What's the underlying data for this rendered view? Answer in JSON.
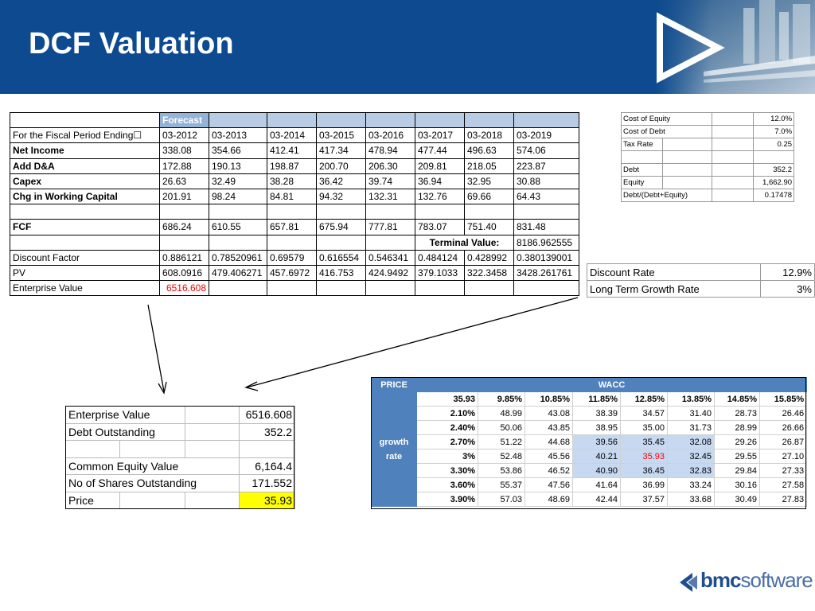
{
  "title": "DCF Valuation",
  "colors": {
    "banner": "#0d4a8f",
    "forecast_header": "#95b3d7",
    "wacc_header": "#4f81bd",
    "highlight": "#c6d9f1",
    "price_cell": "#ffff00",
    "red_text": "#ff0000"
  },
  "main": {
    "forecast_label": "Forecast",
    "rows": [
      {
        "label": "For the Fiscal Period Ending☐",
        "bold": false,
        "values": [
          "03-2012",
          "03-2013",
          "03-2014",
          "03-2015",
          "03-2016",
          "03-2017",
          "03-2018",
          "03-2019"
        ]
      },
      {
        "label": "Net Income",
        "bold": true,
        "values": [
          "338.08",
          "354.66",
          "412.41",
          "417.34",
          "478.94",
          "477.44",
          "496.63",
          "574.06"
        ]
      },
      {
        "label": "Add D&A",
        "bold": true,
        "values": [
          "172.88",
          "190.13",
          "198.87",
          "200.70",
          "206.30",
          "209.81",
          "218.05",
          "223.87"
        ]
      },
      {
        "label": "Capex",
        "bold": true,
        "values": [
          "26.63",
          "32.49",
          "38.28",
          "36.42",
          "39.74",
          "36.94",
          "32.95",
          "30.88"
        ]
      },
      {
        "label": "Chg in Working Capital",
        "bold": true,
        "values": [
          "201.91",
          "98.24",
          "84.81",
          "94.32",
          "132.31",
          "132.76",
          "69.66",
          "64.43"
        ]
      },
      {
        "label": "",
        "bold": false,
        "values": [
          "",
          "",
          "",
          "",
          "",
          "",
          "",
          ""
        ]
      },
      {
        "label": "FCF",
        "bold": true,
        "values": [
          "686.24",
          "610.55",
          "657.81",
          "675.94",
          "777.81",
          "783.07",
          "751.40",
          "831.48"
        ]
      }
    ],
    "terminal_label": "Terminal Value:",
    "terminal_value": "8186.962555",
    "discount_factor": {
      "label": "Discount Factor",
      "values": [
        "0.886121",
        "0.78520961",
        "0.69579",
        "0.616554",
        "0.546341",
        "0.484124",
        "0.428992",
        "0.380139001"
      ]
    },
    "pv": {
      "label": "PV",
      "values": [
        "608.0916",
        "479.406271",
        "457.6972",
        "416.753",
        "424.9492",
        "379.1033",
        "322.3458",
        "3428.261761"
      ]
    },
    "enterprise_value": {
      "label": "Enterprise Value",
      "value": "6516.608"
    }
  },
  "capital": {
    "cost_of_equity": {
      "label": "Cost of Equity",
      "value": "12.0%"
    },
    "cost_of_debt": {
      "label": "Cost of Debt",
      "value": "7.0%"
    },
    "tax_rate": {
      "label": "Tax Rate",
      "value": "0.25"
    },
    "debt": {
      "label": "Debt",
      "value": "352.2"
    },
    "equity": {
      "label": "Equity",
      "value": "1,662.90"
    },
    "debt_ratio": {
      "label": "Debt/(Debt+Equity)",
      "value": "0.17478"
    }
  },
  "rates": {
    "discount_rate": {
      "label": "Discount Rate",
      "value": "12.9%"
    },
    "growth_rate": {
      "label": "Long Term Growth Rate",
      "value": "3%"
    }
  },
  "summary": {
    "enterprise_value": {
      "label": "Enterprise Value",
      "value": "6516.608"
    },
    "debt": {
      "label": "Debt Outstanding",
      "value": "352.2"
    },
    "equity_value": {
      "label": "Common Equity Value",
      "value": "6,164.4"
    },
    "shares": {
      "label": "No of Shares Outstanding",
      "value": "171.552"
    },
    "price": {
      "label": "Price",
      "value": "35.93"
    }
  },
  "sensitivity": {
    "price_label": "PRICE",
    "wacc_label": "WACC",
    "growth_label_1": "growth",
    "growth_label_2": "rate",
    "corner_value": "35.93",
    "wacc_headers": [
      "9.85%",
      "10.85%",
      "11.85%",
      "12.85%",
      "13.85%",
      "14.85%",
      "15.85%"
    ],
    "rows": [
      {
        "growth": "2.10%",
        "values": [
          "48.99",
          "43.08",
          "38.39",
          "34.57",
          "31.40",
          "28.73",
          "26.46"
        ]
      },
      {
        "growth": "2.40%",
        "values": [
          "50.06",
          "43.85",
          "38.95",
          "35.00",
          "31.73",
          "28.99",
          "26.66"
        ]
      },
      {
        "growth": "2.70%",
        "values": [
          "51.22",
          "44.68",
          "39.56",
          "35.45",
          "32.08",
          "29.26",
          "26.87"
        ]
      },
      {
        "growth": "3%",
        "values": [
          "52.48",
          "45.56",
          "40.21",
          "35.93",
          "32.45",
          "29.55",
          "27.10"
        ]
      },
      {
        "growth": "3.30%",
        "values": [
          "53.86",
          "46.52",
          "40.90",
          "36.45",
          "32.83",
          "29.84",
          "27.33"
        ]
      },
      {
        "growth": "3.60%",
        "values": [
          "55.37",
          "47.56",
          "41.64",
          "36.99",
          "33.24",
          "30.16",
          "27.58"
        ]
      },
      {
        "growth": "3.90%",
        "values": [
          "57.03",
          "48.69",
          "42.44",
          "37.57",
          "33.68",
          "30.49",
          "27.83"
        ]
      }
    ]
  },
  "logo": {
    "bold_part": "bmc",
    "light_part": "software"
  }
}
